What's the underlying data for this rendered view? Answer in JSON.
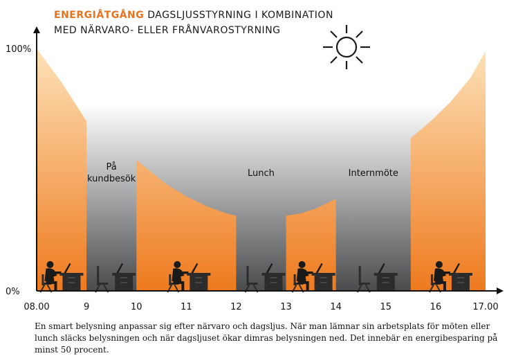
{
  "title": {
    "highlight": "ENERGIÅTGÅNG",
    "rest_line1": " DAGSLJUSSTYRNING I KOMBINATION",
    "line2": "MED NÄRVARO- ELLER FRÅNVAROSTYRNING"
  },
  "colors": {
    "accent": "#e8721c",
    "orange_top": "#fde2b8",
    "orange_bottom": "#ee7a1e",
    "gray_top": "#ffffff",
    "gray_bottom": "#4a4b4d",
    "axis": "#111111"
  },
  "icons": {
    "sun": "sun-icon",
    "occupied_desk": "person-at-desk-icon",
    "empty_desk": "empty-desk-icon"
  },
  "caption": "En smart belysning anpassar sig efter närvaro och dagsljus. När man lämnar sin arbetsplats för möten eller lunch släcks belysningen och när dagsljuset ökar dimras belysningen ned. Det innebär en energibesparing på minst 50 procent.",
  "chart_data": {
    "type": "area",
    "title": "ENERGIÅTGÅNG DAGSLJUSSTYRNING I KOMBINATION MED NÄRVARO- ELLER FRÅNVAROSTYRNING",
    "xlabel": "",
    "ylabel": "",
    "x_ticks": [
      "08.00",
      "9",
      "10",
      "11",
      "12",
      "13",
      "14",
      "15",
      "16",
      "17.00"
    ],
    "x_tick_values": [
      8,
      9,
      10,
      11,
      12,
      13,
      14,
      15,
      16,
      17
    ],
    "xlim": [
      8,
      17
    ],
    "y_ticks": [
      "0%",
      "100%"
    ],
    "ylim": [
      0,
      100
    ],
    "series": [
      {
        "x": [
          8,
          8.25,
          8.5,
          8.75,
          9
        ],
        "values": [
          100,
          93,
          86,
          78,
          70
        ]
      },
      {
        "x": [
          10,
          10.3,
          10.6,
          11,
          11.4,
          11.8,
          12
        ],
        "values": [
          54,
          49,
          44,
          39,
          35,
          32,
          31
        ]
      },
      {
        "x": [
          13,
          13.3,
          13.6,
          14
        ],
        "values": [
          31,
          32,
          34,
          38
        ]
      },
      {
        "x": [
          15.5,
          15.9,
          16.3,
          16.7,
          17
        ],
        "values": [
          63,
          70,
          78,
          88,
          99
        ]
      }
    ],
    "absence_periods": [
      {
        "label": "På\nkundbesök",
        "x": [
          9,
          10
        ]
      },
      {
        "label": "Lunch",
        "x": [
          12,
          13
        ]
      },
      {
        "label": "Internmöte",
        "x": [
          14,
          15.5
        ]
      }
    ],
    "occupancy": [
      {
        "x": 8.45,
        "occupied": true
      },
      {
        "x": 9.5,
        "occupied": false
      },
      {
        "x": 11,
        "occupied": true
      },
      {
        "x": 12.5,
        "occupied": false
      },
      {
        "x": 13.5,
        "occupied": true
      },
      {
        "x": 14.75,
        "occupied": false
      },
      {
        "x": 16.25,
        "occupied": true
      }
    ],
    "grid": false,
    "legend": "none"
  }
}
